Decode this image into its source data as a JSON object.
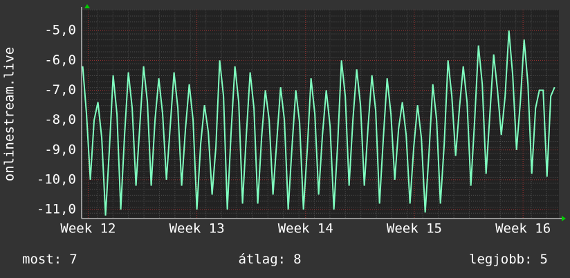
{
  "chart_data": {
    "type": "line",
    "y_label": "onlinestream.live",
    "xlim": [
      11.94,
      16.33
    ],
    "xticks": [
      {
        "value": 12,
        "label": "Week 12"
      },
      {
        "value": 13,
        "label": "Week 13"
      },
      {
        "value": 14,
        "label": "Week 14"
      },
      {
        "value": 15,
        "label": "Week 15"
      },
      {
        "value": 16,
        "label": "Week 16"
      }
    ],
    "ylim": [
      -11.3,
      -4.3
    ],
    "yticks": [
      {
        "value": -5,
        "label": "-5,0"
      },
      {
        "value": -6,
        "label": "-6,0"
      },
      {
        "value": -7,
        "label": "-7,0"
      },
      {
        "value": -8,
        "label": "-8,0"
      },
      {
        "value": -9,
        "label": "-9,0"
      },
      {
        "value": -10,
        "label": "-10,0"
      },
      {
        "value": -11,
        "label": "-11,0"
      }
    ],
    "grid": true,
    "x": [
      11.95,
      11.985,
      12.02,
      12.055,
      12.09,
      12.125,
      12.16,
      12.195,
      12.23,
      12.265,
      12.3,
      12.335,
      12.37,
      12.405,
      12.44,
      12.475,
      12.51,
      12.545,
      12.58,
      12.615,
      12.65,
      12.685,
      12.72,
      12.755,
      12.79,
      12.825,
      12.86,
      12.895,
      12.93,
      12.965,
      13.0,
      13.035,
      13.07,
      13.105,
      13.14,
      13.175,
      13.21,
      13.245,
      13.28,
      13.315,
      13.35,
      13.385,
      13.42,
      13.455,
      13.49,
      13.525,
      13.56,
      13.595,
      13.63,
      13.665,
      13.7,
      13.735,
      13.77,
      13.805,
      13.84,
      13.875,
      13.91,
      13.945,
      13.98,
      14.015,
      14.05,
      14.085,
      14.12,
      14.155,
      14.19,
      14.225,
      14.26,
      14.295,
      14.33,
      14.365,
      14.4,
      14.435,
      14.47,
      14.505,
      14.54,
      14.575,
      14.61,
      14.645,
      14.68,
      14.715,
      14.75,
      14.785,
      14.82,
      14.855,
      14.89,
      14.925,
      14.96,
      14.995,
      15.03,
      15.065,
      15.1,
      15.135,
      15.17,
      15.205,
      15.24,
      15.275,
      15.31,
      15.345,
      15.38,
      15.415,
      15.45,
      15.485,
      15.52,
      15.555,
      15.59,
      15.625,
      15.66,
      15.695,
      15.73,
      15.765,
      15.8,
      15.835,
      15.87,
      15.905,
      15.94,
      15.975,
      16.01,
      16.045,
      16.08,
      16.115,
      16.15,
      16.185,
      16.22,
      16.255,
      16.29
    ],
    "series": [
      {
        "color": "#80ffc0",
        "values": [
          -6.2,
          -7.8,
          -10,
          -8.0,
          -7.4,
          -8.6,
          -11.2,
          -9.0,
          -6.5,
          -7.8,
          -11,
          -8.5,
          -6.4,
          -7.6,
          -10.2,
          -8.2,
          -6.2,
          -7.4,
          -10.2,
          -8.0,
          -6.6,
          -7.8,
          -10,
          -8.2,
          -6.4,
          -7.6,
          -10.2,
          -8.3,
          -6.8,
          -8.0,
          -11,
          -8.8,
          -7.5,
          -8.4,
          -10.5,
          -8.9,
          -6.0,
          -7.2,
          -11,
          -8.4,
          -6.2,
          -7.4,
          -10.8,
          -8.5,
          -6.4,
          -7.6,
          -10.8,
          -8.6,
          -7.0,
          -8.0,
          -10.5,
          -8.7,
          -6.9,
          -8.0,
          -11,
          -8.9,
          -7.0,
          -8.1,
          -11,
          -9.0,
          -6.6,
          -7.8,
          -10.5,
          -8.5,
          -7.0,
          -8.2,
          -11,
          -8.8,
          -6.0,
          -7.2,
          -10.2,
          -8.0,
          -6.3,
          -7.5,
          -10.2,
          -8.2,
          -6.5,
          -7.7,
          -10.8,
          -8.6,
          -6.6,
          -7.8,
          -10,
          -8.3,
          -7.4,
          -8.5,
          -10.8,
          -8.9,
          -7.5,
          -8.6,
          -11.1,
          -9.1,
          -6.8,
          -8.0,
          -10.8,
          -8.8,
          -6.0,
          -7.2,
          -9.2,
          -7.6,
          -6.2,
          -7.4,
          -10.2,
          -8.0,
          -5.5,
          -6.8,
          -9.8,
          -7.8,
          -5.8,
          -7.0,
          -8.5,
          -7.2,
          -5.0,
          -6.5,
          -9.0,
          -7.4,
          -5.3,
          -6.8,
          -9.8,
          -7.6,
          -7.0,
          -7.0,
          -9.9,
          -7.2,
          -6.9
        ]
      }
    ],
    "stats": [
      {
        "label": "most:",
        "value": 7
      },
      {
        "label": "átlag:",
        "value": 8
      },
      {
        "label": "legjobb:",
        "value": 5
      }
    ]
  }
}
